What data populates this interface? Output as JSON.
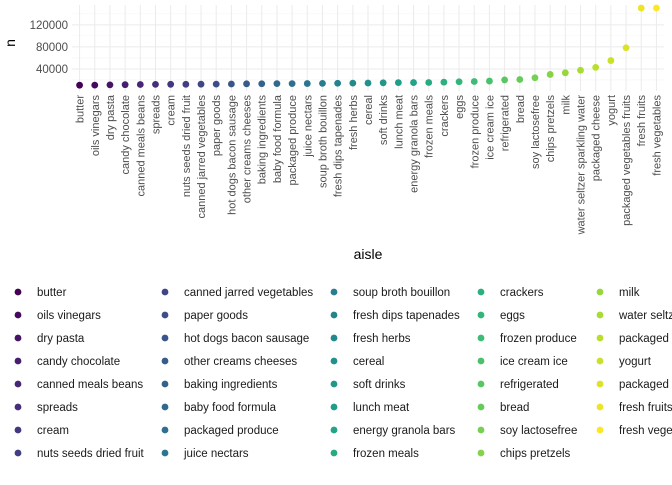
{
  "chart_data": {
    "type": "scatter",
    "title": "",
    "xlabel": "aisle",
    "ylabel": "n",
    "ylim": [
      0,
      156000
    ],
    "y_ticks": [
      40000,
      80000,
      120000
    ],
    "y_tick_labels": [
      "40000",
      "80000",
      "120000"
    ],
    "grid": true,
    "legend_position": "bottom",
    "categories": [
      "butter",
      "oils vinegars",
      "dry pasta",
      "candy chocolate",
      "canned meals beans",
      "spreads",
      "cream",
      "nuts seeds dried fruit",
      "canned jarred vegetables",
      "paper goods",
      "hot dogs bacon sausage",
      "other creams cheeses",
      "baking ingredients",
      "baby food formula",
      "packaged produce",
      "juice nectars",
      "soup broth bouillon",
      "fresh dips tapenades",
      "fresh herbs",
      "cereal",
      "soft drinks",
      "lunch meat",
      "energy granola bars",
      "frozen meals",
      "crackers",
      "eggs",
      "frozen produce",
      "ice cream ice",
      "refrigerated",
      "bread",
      "soy lactosefree",
      "chips pretzels",
      "milk",
      "water seltzer sparkling water",
      "packaged cheese",
      "yogurt",
      "packaged vegetables fruits",
      "fresh fruits",
      "fresh vegetables"
    ],
    "values": [
      10575,
      10706,
      11156,
      11453,
      11774,
      12030,
      12154,
      12181,
      12360,
      12526,
      12753,
      13025,
      13185,
      13333,
      13390,
      13541,
      13805,
      14045,
      14254,
      14447,
      14853,
      15257,
      15262,
      15473,
      16035,
      16839,
      17207,
      18010,
      20101,
      20803,
      24000,
      30003,
      33009,
      37600,
      42804,
      55240,
      78493,
      150473,
      150609
    ],
    "legend_columns_visible_labels": [
      [
        "butter",
        "oils vinegars",
        "dry pasta",
        "candy chocolate",
        "canned meals beans",
        "spreads",
        "cream",
        "nuts seeds dried fruit"
      ],
      [
        "canned jarred vegetables",
        "paper goods",
        "hot dogs bacon sausage",
        "other creams cheeses",
        "baking ingredients",
        "baby food formula",
        "packaged produce",
        "juice nectars"
      ],
      [
        "soup broth bouillon",
        "fresh dips tapenades",
        "fresh herbs",
        "cereal",
        "soft drinks",
        "lunch meat",
        "energy granola bars",
        "frozen meals"
      ],
      [
        "crackers",
        "eggs",
        "frozen produce",
        "ice cream ice",
        "refrigerated",
        "bread",
        "soy lactosefree",
        "chips pretzels"
      ],
      [
        "milk",
        "water seltz",
        "packaged c",
        "yogurt",
        "packaged v",
        "fresh fruits",
        "fresh vege"
      ]
    ],
    "palette": "viridis",
    "colors": {
      "panel_background": "#ffffff",
      "grid_major": "#ebebeb",
      "grid_minor": "#f5f5f5",
      "axis_text": "#4d4d4d",
      "axis_title": "#000000"
    }
  }
}
